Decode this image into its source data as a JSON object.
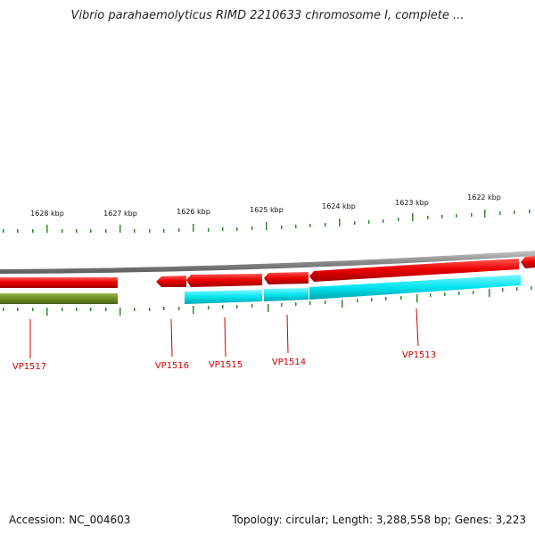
{
  "header": {
    "title": "Vibrio parahaemolyticus RIMD 2210633 chromosome I, complete ..."
  },
  "ruler": {
    "labels": [
      "1628 kbp",
      "1627 kbp",
      "1626 kbp",
      "1625 kbp",
      "1624 kbp",
      "1623 kbp",
      "1622 kbp"
    ]
  },
  "genes": [
    {
      "label": "VP1517"
    },
    {
      "label": "VP1516"
    },
    {
      "label": "VP1515"
    },
    {
      "label": "VP1514"
    },
    {
      "label": "VP1513"
    }
  ],
  "colors": {
    "gene": "#ee0000",
    "cds": "#00e5ee",
    "olive": "#6b8e23",
    "backbone": "#8a8a8a",
    "tick": "#2e8b2e",
    "label": "#cc0000"
  },
  "footer": {
    "accession": "Accession: NC_004603",
    "summary": "Topology: circular; Length: 3,288,558 bp; Genes: 3,223"
  }
}
